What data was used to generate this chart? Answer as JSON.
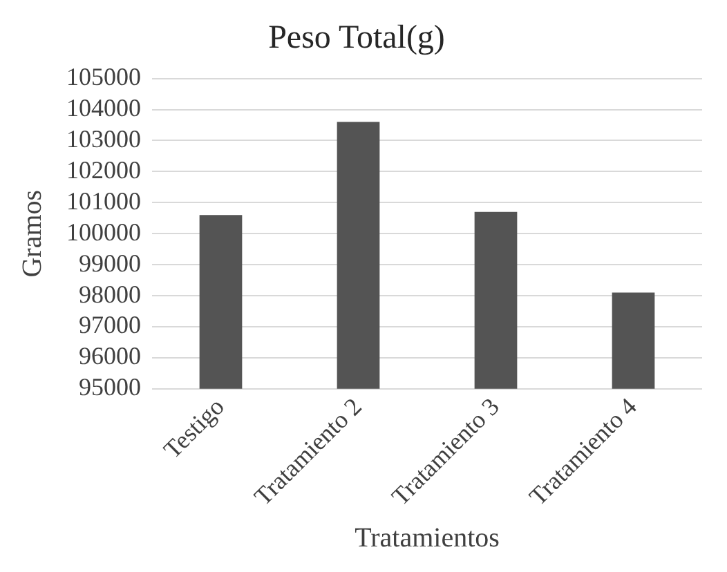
{
  "chart_data": {
    "type": "bar",
    "title": "Peso Total(g)",
    "xlabel": "Tratamientos",
    "ylabel": "Gramos",
    "categories": [
      "Testigo",
      "Tratamiento 2",
      "Tratamiento 3",
      "Tratamiento 4"
    ],
    "values": [
      100600,
      103600,
      100700,
      98100
    ],
    "color": "#545454",
    "ylim": [
      95000,
      105000
    ],
    "yticks": [
      95000,
      96000,
      97000,
      98000,
      99000,
      100000,
      101000,
      102000,
      103000,
      104000,
      105000
    ],
    "grid": "y",
    "legend": false
  }
}
